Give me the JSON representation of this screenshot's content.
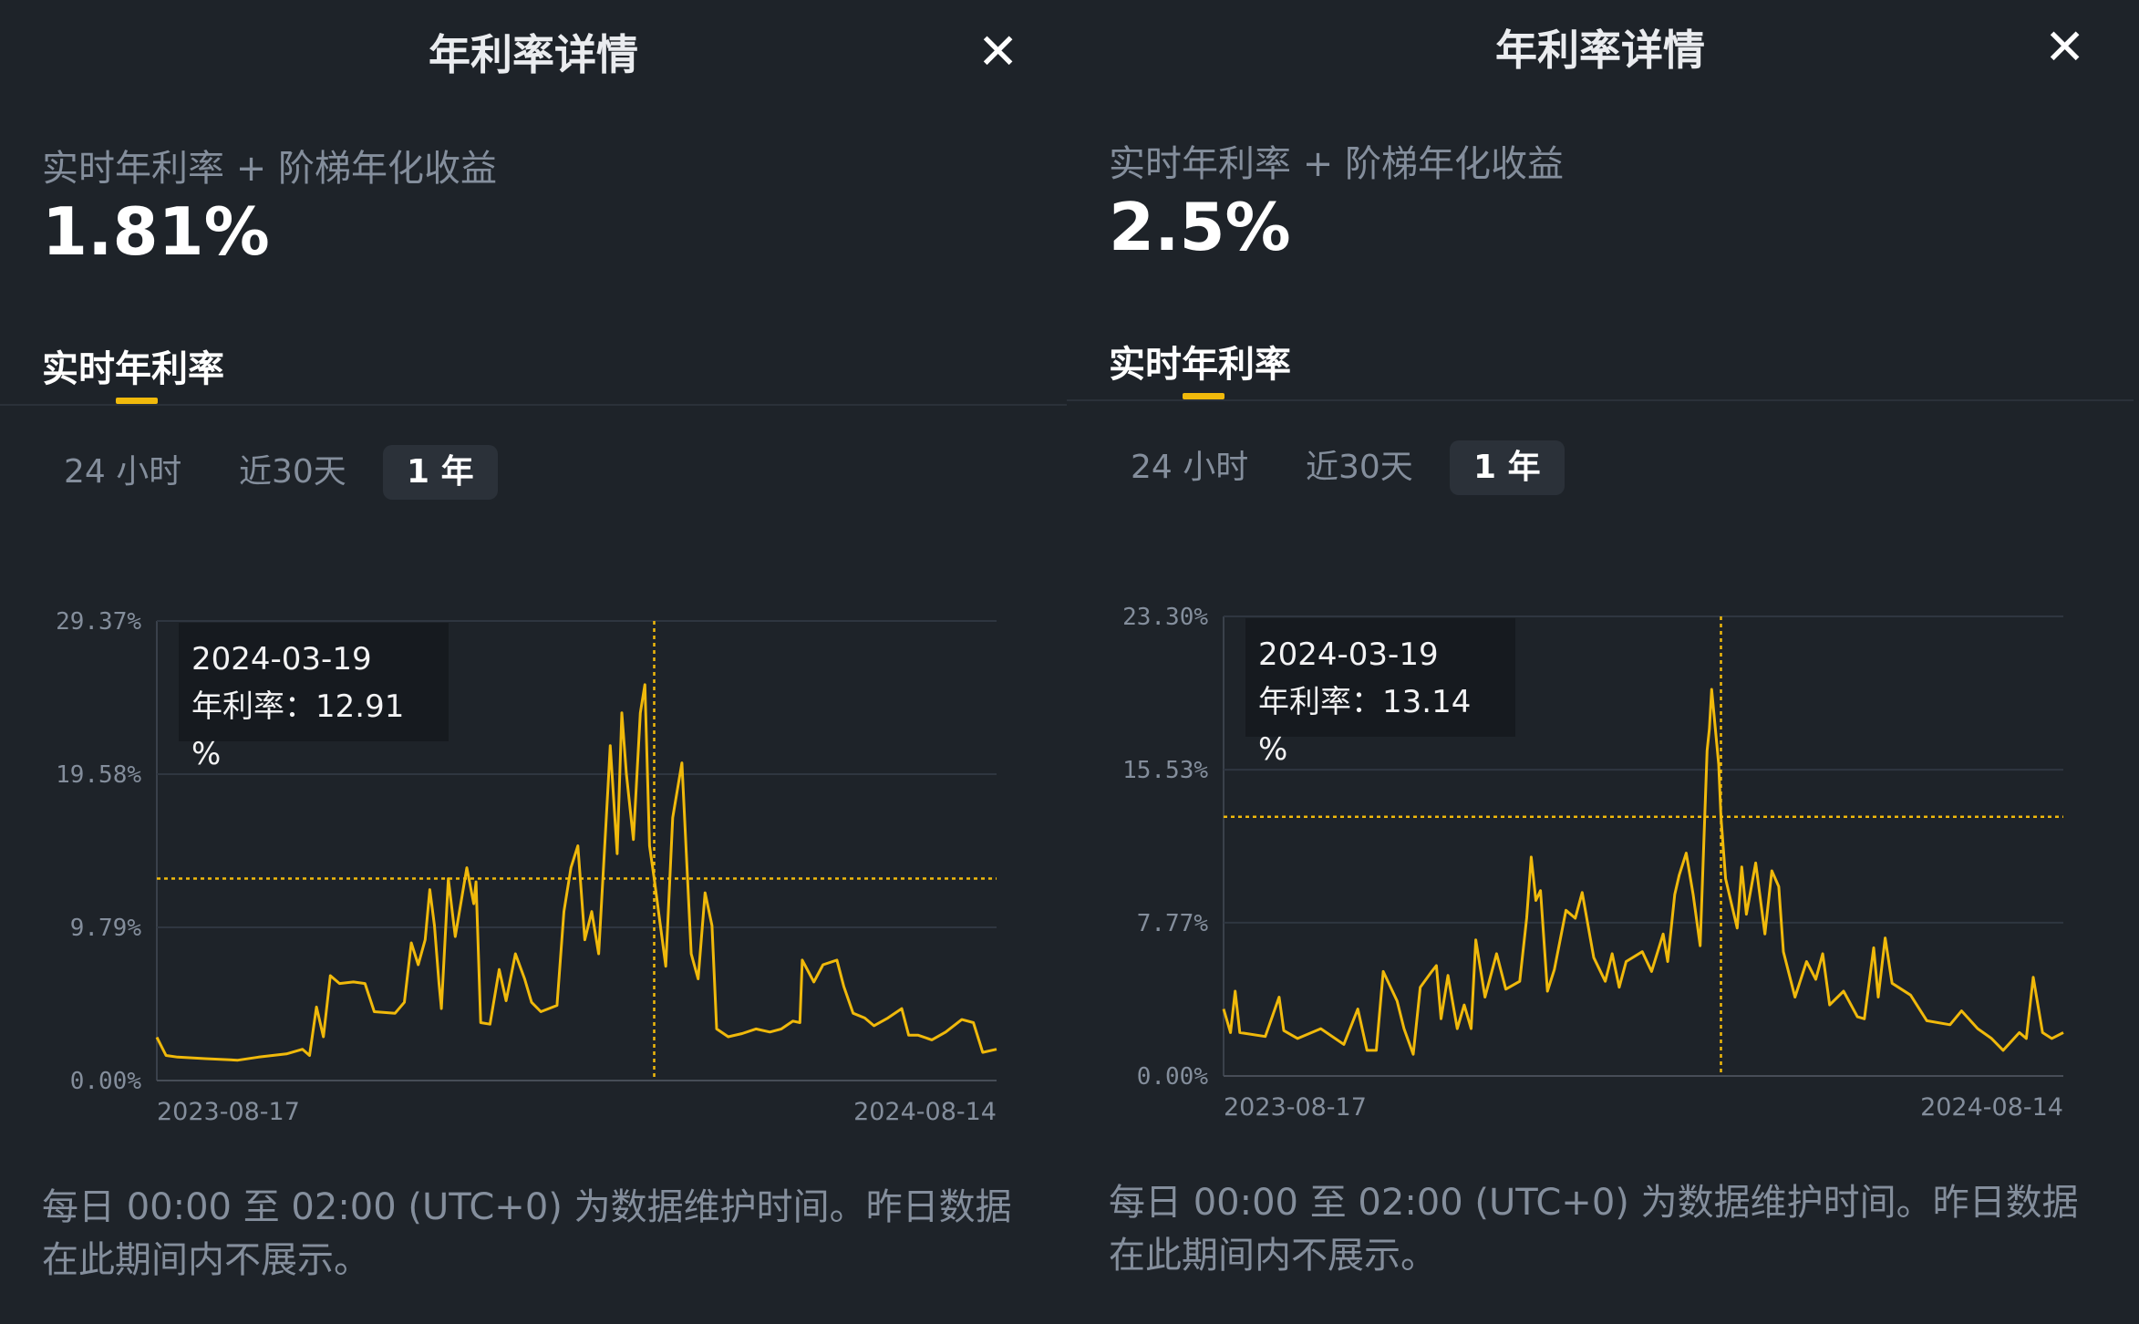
{
  "panels": [
    {
      "title": "年利率详情",
      "close_icon": "close-icon",
      "subtitle": "实时年利率 + 阶梯年化收益",
      "apr": "1.81%",
      "tab": "实时年利率",
      "ranges": [
        "24 小时",
        "近30天",
        "1 年"
      ],
      "selected_range": "1 年",
      "tooltip": {
        "date": "2024-03-19",
        "label": "年利率：",
        "value": "12.91 %"
      },
      "footer": "每日 00:00 至 02:00 (UTC+0) 为数据维护时间。昨日数据在此期间内不展示。",
      "chart_data": {
        "type": "line",
        "color": "#f0b90b",
        "grid": true,
        "ylim": [
          0,
          29.37
        ],
        "yticks": [
          "0.00%",
          "9.79%",
          "19.58%",
          "29.37%"
        ],
        "ytick_values": [
          0,
          9.79,
          19.58,
          29.37
        ],
        "xlim": [
          "2023-08-17",
          "2024-08-14"
        ],
        "xticks": [
          "2023-08-17",
          "2024-08-14"
        ],
        "crosshair": {
          "x": "2024-03-19",
          "y": 12.91
        },
        "x": [
          "2023-08-17",
          "2023-08-21",
          "2023-08-26",
          "2023-09-07",
          "2023-09-21",
          "2023-09-30",
          "2023-10-12",
          "2023-10-19",
          "2023-10-22",
          "2023-10-25",
          "2023-10-28",
          "2023-10-31",
          "2023-11-04",
          "2023-11-10",
          "2023-11-15",
          "2023-11-19",
          "2023-11-28",
          "2023-12-02",
          "2023-12-05",
          "2023-12-08",
          "2023-12-11",
          "2023-12-13",
          "2023-12-15",
          "2023-12-17",
          "2023-12-18",
          "2023-12-21",
          "2023-12-24",
          "2023-12-29",
          "2024-01-01",
          "2024-01-02",
          "2024-01-04",
          "2024-01-08",
          "2024-01-12",
          "2024-01-15",
          "2024-01-19",
          "2024-01-23",
          "2024-01-26",
          "2024-01-30",
          "2024-02-06",
          "2024-02-09",
          "2024-02-12",
          "2024-02-15",
          "2024-02-18",
          "2024-02-21",
          "2024-02-24",
          "2024-02-28",
          "2024-02-29",
          "2024-03-03",
          "2024-03-05",
          "2024-03-07",
          "2024-03-10",
          "2024-03-13",
          "2024-03-15",
          "2024-03-17",
          "2024-03-19",
          "2024-03-24",
          "2024-03-27",
          "2024-03-31",
          "2024-04-04",
          "2024-04-07",
          "2024-04-10",
          "2024-04-13",
          "2024-04-15",
          "2024-04-20",
          "2024-04-26",
          "2024-05-02",
          "2024-05-08",
          "2024-05-13",
          "2024-05-18",
          "2024-05-21",
          "2024-05-22",
          "2024-05-27",
          "2024-05-31",
          "2024-06-06",
          "2024-06-09",
          "2024-06-13",
          "2024-06-18",
          "2024-06-22",
          "2024-06-28",
          "2024-07-04",
          "2024-07-07",
          "2024-07-11",
          "2024-07-17",
          "2024-07-23",
          "2024-07-30",
          "2024-08-04",
          "2024-08-08",
          "2024-08-14"
        ],
        "y": [
          2.76,
          1.6,
          1.5,
          1.4,
          1.3,
          1.5,
          1.7,
          2.0,
          1.6,
          4.7,
          2.8,
          6.7,
          6.2,
          6.3,
          6.2,
          4.4,
          4.3,
          5.0,
          8.8,
          7.4,
          9.0,
          12.2,
          9.9,
          6.2,
          4.6,
          12.9,
          9.2,
          13.6,
          11.3,
          12.7,
          3.7,
          3.6,
          7.1,
          5.1,
          8.1,
          6.5,
          5.0,
          4.4,
          4.8,
          10.8,
          13.6,
          15.0,
          9.0,
          10.8,
          8.1,
          18.7,
          21.4,
          14.5,
          23.5,
          19.6,
          15.4,
          23.5,
          25.3,
          15.0,
          12.91,
          7.3,
          16.8,
          20.3,
          8.1,
          6.5,
          12.0,
          9.9,
          3.3,
          2.8,
          3.0,
          3.3,
          3.1,
          3.3,
          3.8,
          3.7,
          7.7,
          6.3,
          7.4,
          7.7,
          6.0,
          4.3,
          4.0,
          3.5,
          4.0,
          4.6,
          2.9,
          2.9,
          2.6,
          3.1,
          3.9,
          3.7,
          1.8,
          2.0
        ]
      }
    },
    {
      "title": "年利率详情",
      "close_icon": "close-icon",
      "subtitle": "实时年利率 + 阶梯年化收益",
      "apr": "2.5%",
      "tab": "实时年利率",
      "ranges": [
        "24 小时",
        "近30天",
        "1 年"
      ],
      "selected_range": "1 年",
      "tooltip": {
        "date": "2024-03-19",
        "label": "年利率：",
        "value": "13.14 %"
      },
      "footer": "每日 00:00 至 02:00 (UTC+0) 为数据维护时间。昨日数据在此期间内不展示。",
      "chart_data": {
        "type": "line",
        "color": "#f0b90b",
        "grid": true,
        "ylim": [
          0,
          23.3
        ],
        "yticks": [
          "0.00%",
          "7.77%",
          "15.53%",
          "23.30%"
        ],
        "ytick_values": [
          0,
          7.77,
          15.53,
          23.3
        ],
        "xlim": [
          "2023-08-17",
          "2024-08-14"
        ],
        "xticks": [
          "2023-08-17",
          "2024-08-14"
        ],
        "crosshair": {
          "x": "2024-03-19",
          "y": 13.14
        },
        "x": [
          "2023-08-17",
          "2023-08-20",
          "2023-08-22",
          "2023-08-24",
          "2023-09-04",
          "2023-09-10",
          "2023-09-12",
          "2023-09-18",
          "2023-09-28",
          "2023-10-08",
          "2023-10-14",
          "2023-10-18",
          "2023-10-22",
          "2023-10-25",
          "2023-10-31",
          "2023-11-03",
          "2023-11-07",
          "2023-11-10",
          "2023-11-15",
          "2023-11-17",
          "2023-11-19",
          "2023-11-22",
          "2023-11-26",
          "2023-11-29",
          "2023-12-02",
          "2023-12-04",
          "2023-12-08",
          "2023-12-13",
          "2023-12-17",
          "2023-12-23",
          "2023-12-26",
          "2023-12-28",
          "2023-12-30",
          "2024-01-01",
          "2024-01-04",
          "2024-01-07",
          "2024-01-12",
          "2024-01-16",
          "2024-01-19",
          "2024-01-24",
          "2024-01-29",
          "2024-02-01",
          "2024-02-04",
          "2024-02-07",
          "2024-02-14",
          "2024-02-18",
          "2024-02-23",
          "2024-02-25",
          "2024-02-28",
          "2024-03-01",
          "2024-03-04",
          "2024-03-07",
          "2024-03-10",
          "2024-03-13",
          "2024-03-14",
          "2024-03-15",
          "2024-03-18",
          "2024-03-19",
          "2024-03-21",
          "2024-03-26",
          "2024-03-28",
          "2024-03-30",
          "2024-04-03",
          "2024-04-07",
          "2024-04-10",
          "2024-04-13",
          "2024-04-15",
          "2024-04-20",
          "2024-04-25",
          "2024-04-29",
          "2024-05-02",
          "2024-05-05",
          "2024-05-11",
          "2024-05-17",
          "2024-05-20",
          "2024-05-24",
          "2024-05-26",
          "2024-05-29",
          "2024-06-01",
          "2024-06-09",
          "2024-06-16",
          "2024-06-26",
          "2024-07-01",
          "2024-07-08",
          "2024-07-14",
          "2024-07-19",
          "2024-07-26",
          "2024-07-29",
          "2024-08-01",
          "2024-08-05",
          "2024-08-09",
          "2024-08-14"
        ],
        "y": [
          3.4,
          2.2,
          4.3,
          2.2,
          2.0,
          4.0,
          2.3,
          1.9,
          2.4,
          1.6,
          3.4,
          1.3,
          1.3,
          5.3,
          3.8,
          2.4,
          1.1,
          4.5,
          5.3,
          5.6,
          2.9,
          5.1,
          2.4,
          3.6,
          2.4,
          6.9,
          4.0,
          6.2,
          4.4,
          4.8,
          8.0,
          11.1,
          8.9,
          9.4,
          4.3,
          5.4,
          8.4,
          8.0,
          9.3,
          6.0,
          4.8,
          6.2,
          4.5,
          5.8,
          6.3,
          5.3,
          7.2,
          5.8,
          9.2,
          10.2,
          11.3,
          9.2,
          6.6,
          16.5,
          17.6,
          19.6,
          15.8,
          13.14,
          10.0,
          7.5,
          10.6,
          8.2,
          10.8,
          7.2,
          10.4,
          9.6,
          6.3,
          4.0,
          5.8,
          4.9,
          6.2,
          3.6,
          4.3,
          3.0,
          2.9,
          6.5,
          4.0,
          7.0,
          4.7,
          4.1,
          2.8,
          2.6,
          3.3,
          2.4,
          1.9,
          1.3,
          2.2,
          1.9,
          5.0,
          2.2,
          1.9,
          2.2
        ]
      }
    }
  ]
}
